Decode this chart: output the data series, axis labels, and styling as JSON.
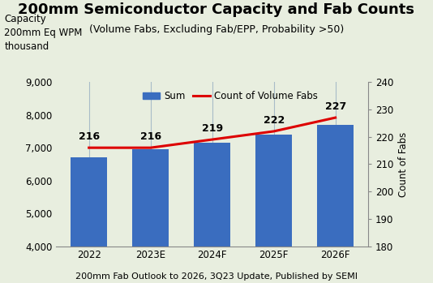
{
  "title": "200mm Semiconductor Capacity and Fab Counts",
  "subtitle": "(Volume Fabs, Excluding Fab/EPP, Probability >50)",
  "footnote": "200mm Fab Outlook to 2026, 3Q23 Update, Published by SEMI",
  "ylabel_left_lines": [
    "Capacity",
    "200mm Eq WPM",
    "thousand"
  ],
  "ylabel_right": "Count of Fabs",
  "categories": [
    "2022",
    "2023E",
    "2024F",
    "2025F",
    "2026F"
  ],
  "bar_values": [
    6720,
    6960,
    7160,
    7390,
    7700
  ],
  "line_values": [
    216,
    216,
    219,
    222,
    227
  ],
  "bar_color": "#3a6dbf",
  "line_color": "#dd0000",
  "bg_color": "#e8eedf",
  "ylim_left": [
    4000,
    9000
  ],
  "ylim_right": [
    180,
    240
  ],
  "yticks_left": [
    4000,
    5000,
    6000,
    7000,
    8000,
    9000
  ],
  "yticks_right": [
    180,
    190,
    200,
    210,
    220,
    230,
    240
  ],
  "legend_sum": "Sum",
  "legend_line": "Count of Volume Fabs",
  "title_fontsize": 13,
  "subtitle_fontsize": 9,
  "footnote_fontsize": 8,
  "label_fontsize": 9,
  "tick_fontsize": 8.5
}
